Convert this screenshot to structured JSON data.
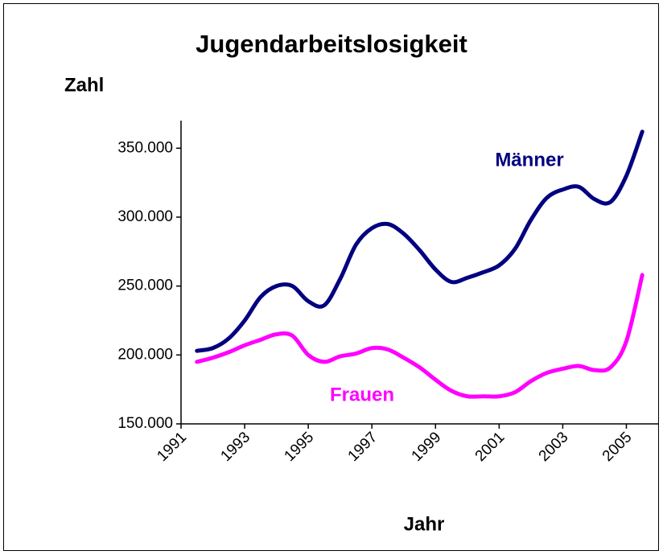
{
  "chart_data": {
    "type": "line",
    "title": "Jugendarbeitslosigkeit",
    "y_label": "Zahl",
    "x_label": "Jahr",
    "x": [
      1991.5,
      1992,
      1992.5,
      1993,
      1993.5,
      1994,
      1994.5,
      1995,
      1995.5,
      1996,
      1996.5,
      1997,
      1997.5,
      1998,
      1998.5,
      1999,
      1999.5,
      2000,
      2000.5,
      2001,
      2001.5,
      2002,
      2002.5,
      2003,
      2003.5,
      2004,
      2004.5,
      2005,
      2005.5
    ],
    "series": [
      {
        "name": "Männer",
        "color": "#000080",
        "values": [
          203000,
          205000,
          212000,
          225000,
          242000,
          250000,
          250000,
          239000,
          236000,
          255000,
          280000,
          292000,
          295000,
          288000,
          276000,
          262000,
          253000,
          256000,
          260000,
          265000,
          277000,
          298000,
          314000,
          320000,
          322000,
          313000,
          311000,
          330000,
          362000
        ]
      },
      {
        "name": "Frauen",
        "color": "#ff00ff",
        "values": [
          195000,
          198000,
          202000,
          207000,
          211000,
          215000,
          214000,
          200000,
          195000,
          199000,
          201000,
          205000,
          204000,
          198000,
          191000,
          182000,
          174000,
          170000,
          170000,
          170000,
          173000,
          181000,
          187000,
          190000,
          192000,
          189000,
          191000,
          210000,
          258000
        ]
      }
    ],
    "xlim": [
      1991,
      2006
    ],
    "xticks": [
      1991,
      1993,
      1995,
      1997,
      1999,
      2001,
      2003,
      2005
    ],
    "ylim": [
      150000,
      370000
    ],
    "yticks": [
      {
        "value": 150000,
        "label": "150.000"
      },
      {
        "value": 200000,
        "label": "200.000"
      },
      {
        "value": 250000,
        "label": "250.000"
      },
      {
        "value": 300000,
        "label": "300.000"
      },
      {
        "value": 350000,
        "label": "350.000"
      }
    ],
    "grid": false
  }
}
